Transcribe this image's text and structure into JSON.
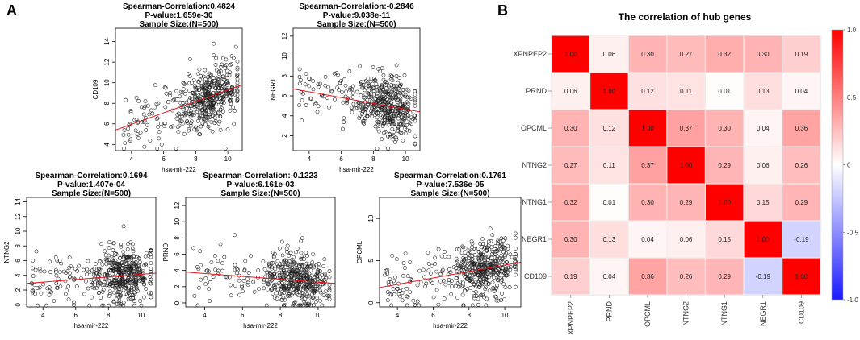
{
  "panel_labels": {
    "a": "A",
    "b": "B"
  },
  "colors": {
    "neg": "#1a1aff",
    "mid": "#ffffff",
    "pos": "#ff0000",
    "fit": "#e8111b",
    "point": "#222222",
    "grid": "#eeeeee"
  },
  "chart_data": [
    {
      "type": "scatter",
      "id": "p1",
      "title_lines": [
        "Spearman-Correlation:0.4824",
        "P-value:1.659e-30",
        "Sample Size:(N=500)"
      ],
      "xlabel": "hsa-mir-222",
      "ylabel": "CD109",
      "xlim": [
        3.0,
        10.9
      ],
      "ylim": [
        3.4,
        15.3
      ],
      "xticks": [
        4,
        6,
        8,
        10
      ],
      "yticks": [
        4,
        6,
        8,
        10,
        12,
        14
      ],
      "rho": 0.4824,
      "fit": {
        "x": [
          3.0,
          10.9
        ],
        "y": [
          5.4,
          9.8
        ]
      },
      "point_count": 500
    },
    {
      "type": "scatter",
      "id": "p2",
      "title_lines": [
        "Spearman-Correlation:-0.2846",
        "P-value:9.038e-11",
        "Sample Size:(N=500)"
      ],
      "xlabel": "hsa-mir-222",
      "ylabel": "NEGR1",
      "xlim": [
        3.0,
        10.9
      ],
      "ylim": [
        0.5,
        12.8
      ],
      "xticks": [
        4,
        6,
        8,
        10
      ],
      "yticks": [
        2,
        4,
        6,
        8,
        10,
        12
      ],
      "rho": -0.2846,
      "fit": {
        "x": [
          3.0,
          10.9
        ],
        "y": [
          6.7,
          4.4
        ]
      },
      "point_count": 500
    },
    {
      "type": "scatter",
      "id": "p3",
      "title_lines": [
        "Spearman-Correlation:0.1694",
        "P-value:1.407e-04",
        "Sample Size:(N=500)"
      ],
      "xlabel": "hsa-mir-222",
      "ylabel": "NTNG2",
      "xlim": [
        3.0,
        10.9
      ],
      "ylim": [
        -0.3,
        14.6
      ],
      "xticks": [
        4,
        6,
        8,
        10
      ],
      "yticks": [
        0,
        2,
        4,
        6,
        8,
        10,
        12,
        14
      ],
      "rho": 0.1694,
      "fit": {
        "x": [
          3.0,
          10.9
        ],
        "y": [
          2.9,
          4.3
        ]
      },
      "point_count": 500
    },
    {
      "type": "scatter",
      "id": "p4",
      "title_lines": [
        "Spearman-Correlation:-0.1223",
        "P-value:6.161e-03",
        "Sample Size:(N=500)"
      ],
      "xlabel": "hsa-mir-222",
      "ylabel": "PRND",
      "xlim": [
        3.0,
        10.9
      ],
      "ylim": [
        -0.5,
        13.0
      ],
      "xticks": [
        4,
        6,
        8,
        10
      ],
      "yticks": [
        0,
        2,
        4,
        6,
        8,
        10,
        12
      ],
      "rho": -0.1223,
      "fit": {
        "x": [
          3.0,
          10.9
        ],
        "y": [
          3.8,
          2.4
        ]
      },
      "point_count": 500
    },
    {
      "type": "scatter",
      "id": "p5",
      "title_lines": [
        "Spearman-Correlation:0.1761",
        "P-value:7.536e-05",
        "Sample Size:(N=500)"
      ],
      "xlabel": "hsa-mir-222",
      "ylabel": "OPCML",
      "xlim": [
        3.0,
        10.9
      ],
      "ylim": [
        -0.5,
        12.5
      ],
      "xticks": [
        4,
        6,
        8,
        10
      ],
      "yticks": [
        0,
        5,
        10
      ],
      "rho": 0.1761,
      "fit": {
        "x": [
          3.0,
          10.9
        ],
        "y": [
          1.8,
          4.8
        ]
      },
      "point_count": 500
    },
    {
      "type": "heatmap",
      "id": "heat",
      "title": "The correlation of hub genes",
      "labels": [
        "XPNPEP2",
        "PRND",
        "OPCML",
        "NTNG2",
        "NTNG1",
        "NEGR1",
        "CD109"
      ],
      "matrix": [
        [
          1.0,
          0.06,
          0.3,
          0.27,
          0.32,
          0.3,
          0.19
        ],
        [
          0.06,
          1.0,
          0.12,
          0.11,
          0.01,
          0.13,
          0.04
        ],
        [
          0.3,
          0.12,
          1.0,
          0.37,
          0.3,
          0.04,
          0.36
        ],
        [
          0.27,
          0.11,
          0.37,
          1.0,
          0.29,
          0.06,
          0.26
        ],
        [
          0.32,
          0.01,
          0.3,
          0.29,
          1.0,
          0.15,
          0.29
        ],
        [
          0.3,
          0.13,
          0.04,
          0.06,
          0.15,
          1.0,
          -0.19
        ],
        [
          0.19,
          0.04,
          0.36,
          0.26,
          0.29,
          -0.19,
          1.0
        ]
      ],
      "cell_labels": [
        [
          "1.00",
          "0.06",
          "0.30",
          "0.27",
          "0.32",
          "0.30",
          "0.19"
        ],
        [
          "0.06",
          "1.00",
          "0.12",
          "0.11",
          "0.01",
          "0.13",
          "0.04"
        ],
        [
          "0.30",
          "0.12",
          "1.00",
          "0.37",
          "0.30",
          "0.04",
          "0.36"
        ],
        [
          "0.27",
          "0.11",
          "0.37",
          "1.00",
          "0.29",
          "0.06",
          "0.26"
        ],
        [
          "0.32",
          "0.01",
          "0.30",
          "0.29",
          "1.00",
          "0.15",
          "0.29"
        ],
        [
          "0.30",
          "0.13",
          "0.04",
          "0.06",
          "0.15",
          "1.00",
          "-0.19"
        ],
        [
          "0.19",
          "0.04",
          "0.36",
          "0.26",
          "0.29",
          "-0.19",
          "1.00"
        ]
      ],
      "vmin": -1.0,
      "vmax": 1.0,
      "colorbar_ticks": [
        {
          "value": 1.0,
          "label": "1.0"
        },
        {
          "value": 0.5,
          "label": "0.5"
        },
        {
          "value": 0.0,
          "label": "0"
        },
        {
          "value": -0.5,
          "label": "-0.5"
        },
        {
          "value": -1.0,
          "label": "-1.0"
        }
      ]
    }
  ]
}
